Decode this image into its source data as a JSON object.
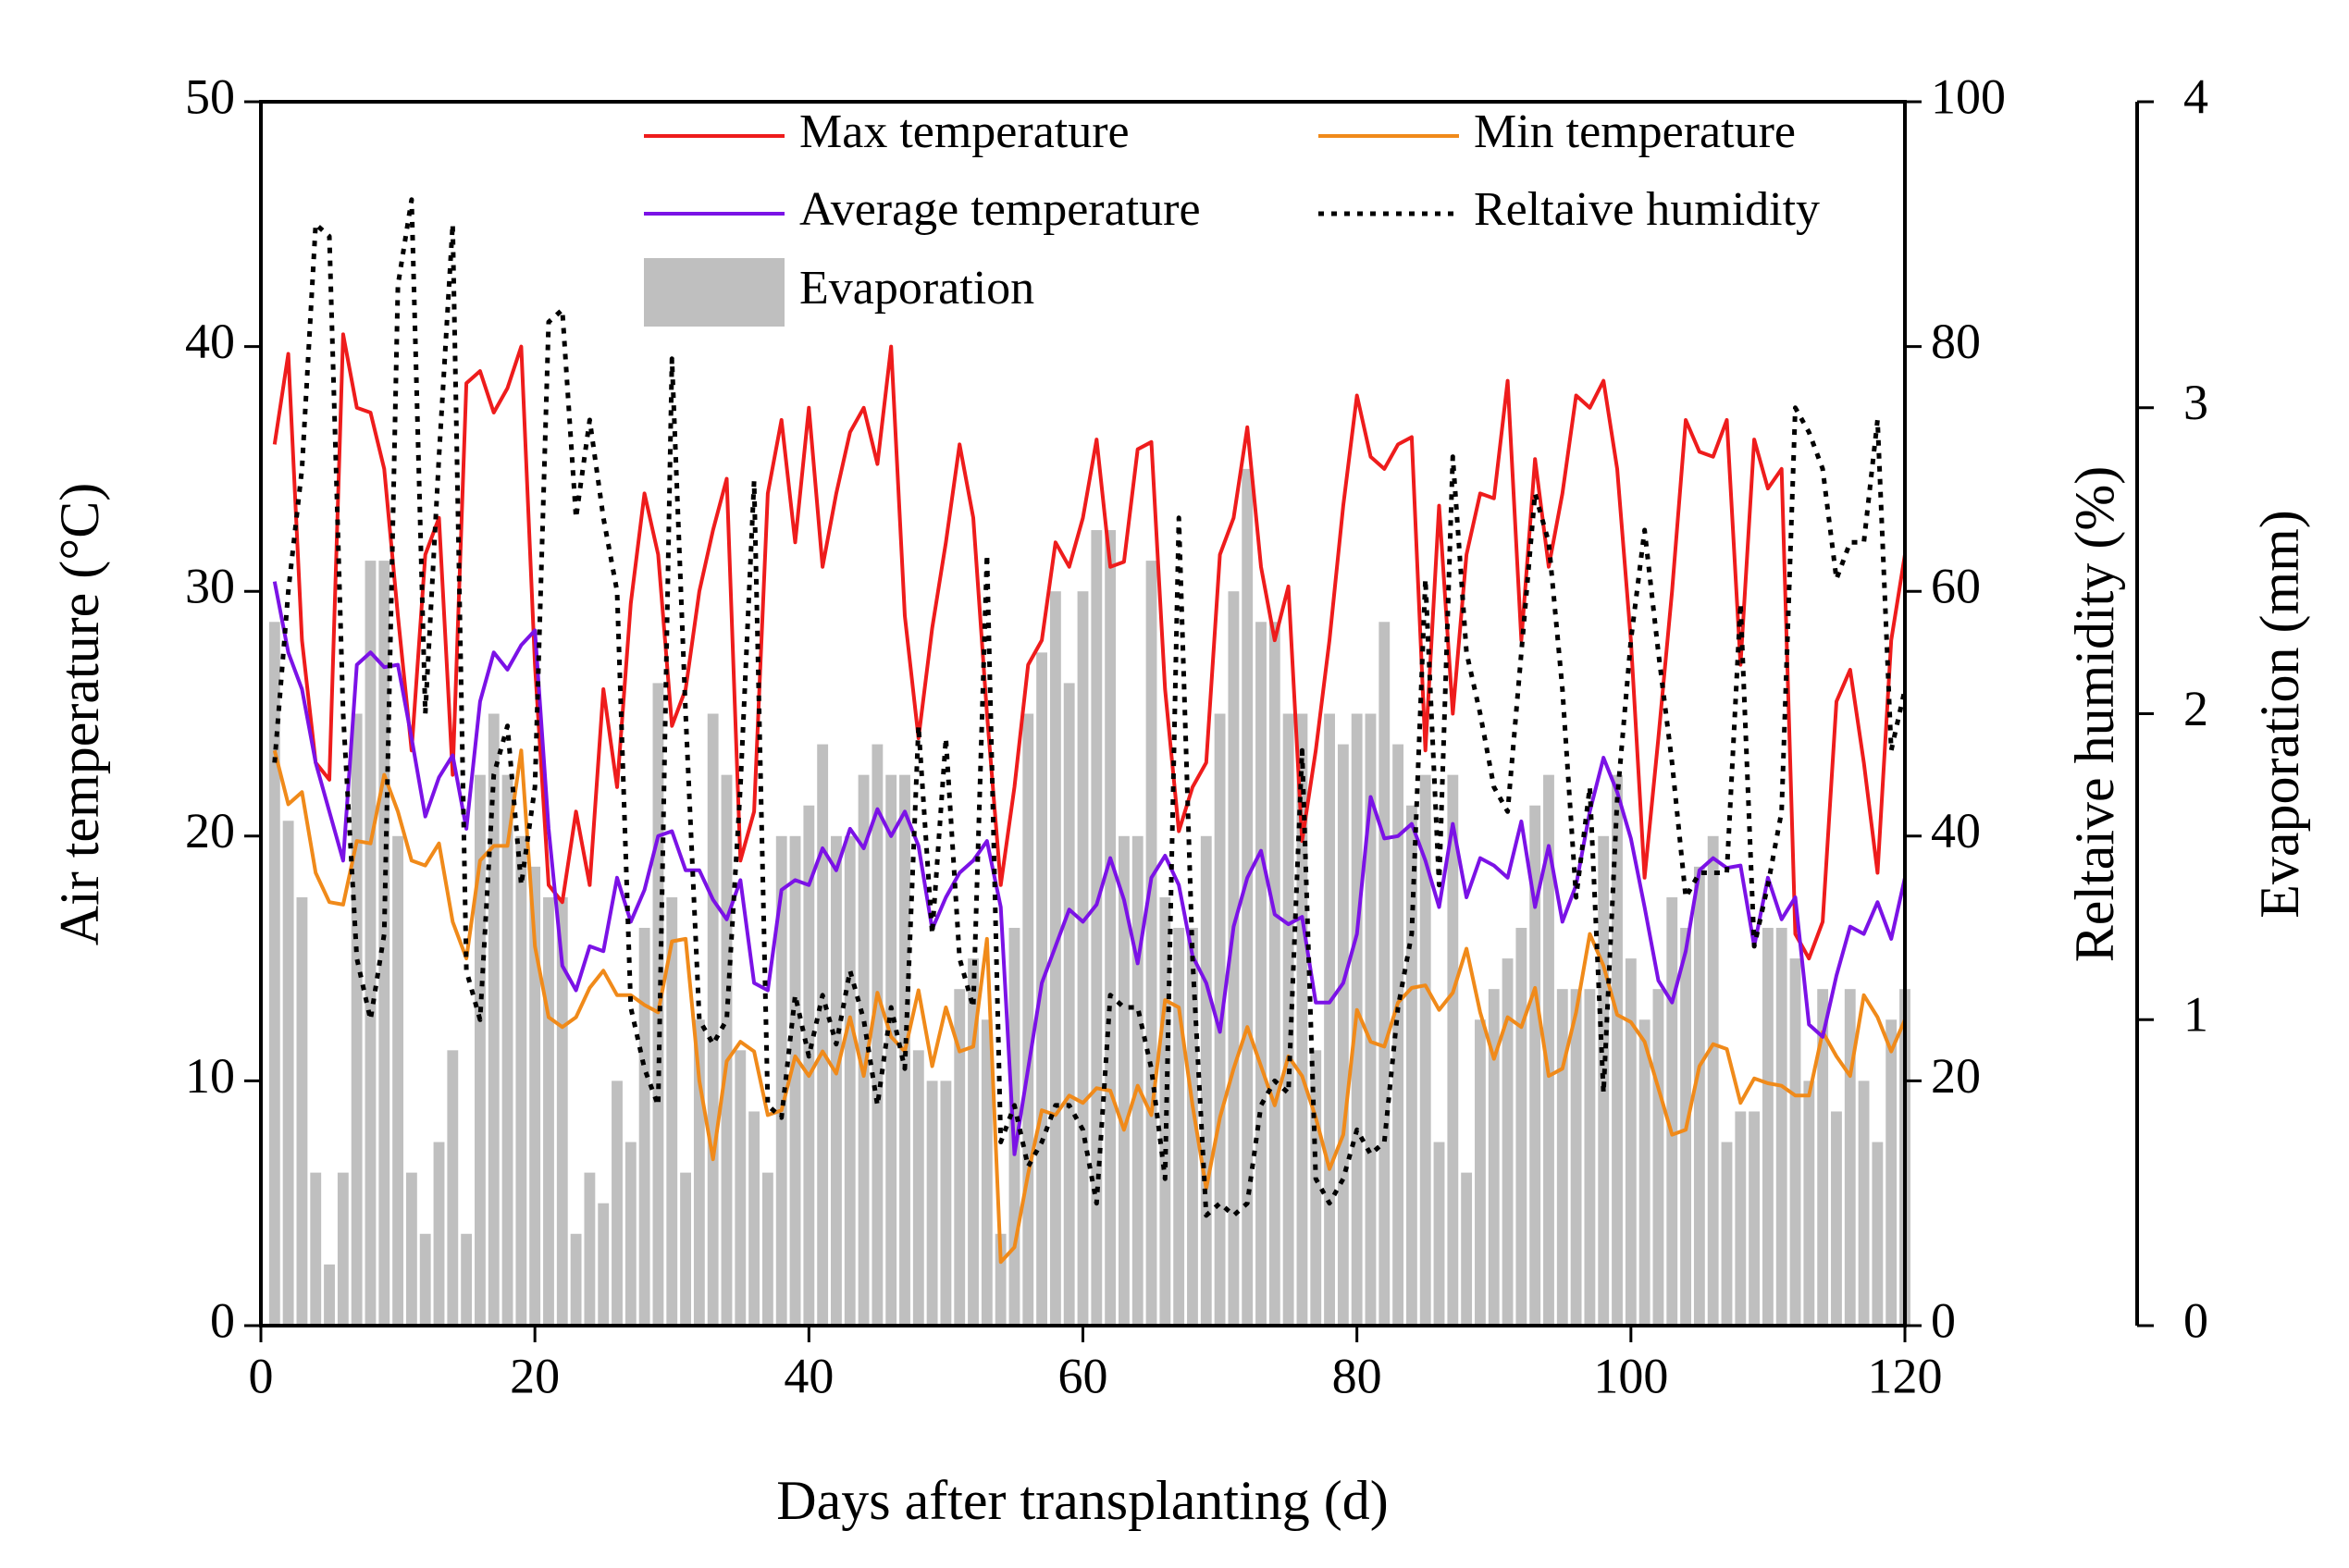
{
  "chart_data": {
    "type": "line",
    "xlabel": "Days after transplanting (d)",
    "ylabel": "Air temperature (°C)",
    "y2label": "Reltaive humidity (%)",
    "y3label": "Evaporation (mm)",
    "x": [
      1,
      2,
      3,
      4,
      5,
      6,
      7,
      8,
      9,
      10,
      11,
      12,
      13,
      14,
      15,
      16,
      17,
      18,
      19,
      20,
      21,
      22,
      23,
      24,
      25,
      26,
      27,
      28,
      29,
      30,
      31,
      32,
      33,
      34,
      35,
      36,
      37,
      38,
      39,
      40,
      41,
      42,
      43,
      44,
      45,
      46,
      47,
      48,
      49,
      50,
      51,
      52,
      53,
      54,
      55,
      56,
      57,
      58,
      59,
      60,
      61,
      62,
      63,
      64,
      65,
      66,
      67,
      68,
      69,
      70,
      71,
      72,
      73,
      74,
      75,
      76,
      77,
      78,
      79,
      80,
      81,
      82,
      83,
      84,
      85,
      86,
      87,
      88,
      89,
      90,
      91,
      92,
      93,
      94,
      95,
      96,
      97,
      98,
      99,
      100,
      101,
      102,
      103,
      104,
      105,
      106,
      107,
      108,
      109,
      110,
      111,
      112,
      113,
      114,
      115,
      116,
      117,
      118,
      119,
      120
    ],
    "xlim": [
      0,
      120
    ],
    "xticks": [
      0,
      20,
      40,
      60,
      80,
      100,
      120
    ],
    "ylim": [
      0,
      50
    ],
    "yticks": [
      0,
      10,
      20,
      30,
      40,
      50
    ],
    "y2lim": [
      0,
      100
    ],
    "y2ticks": [
      0,
      20,
      40,
      60,
      80,
      100
    ],
    "y3lim": [
      0,
      4
    ],
    "y3ticks": [
      0,
      1,
      2,
      3,
      4
    ],
    "series": [
      {
        "name": "Max temperature",
        "color": "#ee1c1c",
        "linestyle": "solid",
        "axis": "y",
        "values": [
          36,
          39.7,
          28,
          23,
          22.3,
          40.5,
          37.5,
          37.3,
          35,
          29,
          23.5,
          31.5,
          33,
          22.5,
          38.5,
          39,
          37.3,
          38.3,
          40,
          27,
          18,
          17.3,
          21,
          18,
          26,
          22,
          29.5,
          34,
          31.5,
          24.5,
          26,
          30,
          32.5,
          34.6,
          19,
          21,
          34,
          37,
          32,
          37.5,
          31,
          34,
          36.5,
          37.5,
          35.2,
          40,
          29,
          24,
          28.5,
          32,
          36,
          33,
          25,
          18,
          22,
          27,
          28,
          32,
          31,
          33,
          36.2,
          31,
          31.2,
          35.8,
          36.1,
          26,
          20.2,
          22,
          23,
          31.5,
          33,
          36.7,
          31,
          28,
          30.2,
          19.8,
          23.5,
          28,
          33.5,
          38,
          35.5,
          35,
          36,
          36.3,
          23.5,
          33.5,
          25,
          31.5,
          34,
          33.8,
          38.6,
          28,
          35.4,
          31,
          34,
          38,
          37.5,
          38.6,
          35,
          28,
          18.3,
          24,
          30,
          37,
          35.7,
          35.5,
          37,
          27,
          36.2,
          34.2,
          35,
          16,
          15,
          16.5,
          25.5,
          26.8,
          23,
          18.5,
          28,
          31.5
        ]
      },
      {
        "name": "Min temperature",
        "color": "#f08a1a",
        "linestyle": "solid",
        "axis": "y",
        "values": [
          23.5,
          21.3,
          21.8,
          18.5,
          17.3,
          17.2,
          19.8,
          19.7,
          22.5,
          21,
          19,
          18.8,
          19.7,
          16.5,
          15,
          19,
          19.6,
          19.6,
          23.5,
          15.5,
          12.6,
          12.2,
          12.6,
          13.8,
          14.5,
          13.5,
          13.5,
          13.1,
          12.8,
          15.7,
          15.8,
          10,
          6.8,
          10.8,
          11.6,
          11.2,
          8.6,
          8.8,
          11,
          10.2,
          11.2,
          10.3,
          12.6,
          10.2,
          13.6,
          11.8,
          11.2,
          13.7,
          10.6,
          13,
          11.2,
          11.4,
          15.8,
          2.6,
          3.2,
          6.2,
          8.8,
          8.6,
          9.4,
          9.1,
          9.7,
          9.6,
          8,
          9.8,
          8.6,
          13.3,
          13,
          9,
          5.6,
          8.5,
          10.5,
          12.2,
          10.6,
          9,
          11,
          10.2,
          8.5,
          6.4,
          7.8,
          12.9,
          11.6,
          11.4,
          13.2,
          13.8,
          13.9,
          12.9,
          13.6,
          15.4,
          12.8,
          10.9,
          12.6,
          12.2,
          13.8,
          10.2,
          10.5,
          12.8,
          16,
          14.7,
          12.7,
          12.4,
          11.6,
          9.7,
          7.8,
          8,
          10.6,
          11.5,
          11.3,
          9.1,
          10.1,
          9.9,
          9.8,
          9.4,
          9.4,
          12,
          11,
          10.2,
          13.5,
          12.6,
          11.2,
          12.5
        ]
      },
      {
        "name": "Average temperature",
        "color": "#7b12e6",
        "linestyle": "solid",
        "axis": "y",
        "values": [
          30.4,
          27.5,
          26,
          23,
          21,
          19,
          27,
          27.5,
          26.9,
          27,
          24,
          20.8,
          22.4,
          23.3,
          20.3,
          25.5,
          27.5,
          26.8,
          27.8,
          28.4,
          20.3,
          14.7,
          13.7,
          15.5,
          15.3,
          18.3,
          16.5,
          17.8,
          20,
          20.2,
          18.6,
          18.6,
          17.4,
          16.6,
          18.2,
          14,
          13.7,
          17.8,
          18.2,
          18,
          19.5,
          18.6,
          20.3,
          19.5,
          21.1,
          20,
          21,
          19.6,
          16.2,
          17.5,
          18.5,
          19,
          19.8,
          17.1,
          7,
          10.5,
          14,
          15.5,
          17,
          16.5,
          17.2,
          19.1,
          17.4,
          14.8,
          18.3,
          19.2,
          18,
          15.1,
          14,
          12,
          16.3,
          18.3,
          19.4,
          16.8,
          16.4,
          16.7,
          13.2,
          13.2,
          14,
          16,
          21.6,
          19.9,
          20,
          20.5,
          19,
          17.1,
          20.5,
          17.5,
          19.1,
          18.8,
          18.3,
          20.6,
          17.1,
          19.6,
          16.5,
          18,
          21,
          23.2,
          21.8,
          19.9,
          17.1,
          14.1,
          13.2,
          15.3,
          18.6,
          19.1,
          18.7,
          18.8,
          15.5,
          18.3,
          16.6,
          17.5,
          12.3,
          11.8,
          14.3,
          16.3,
          16,
          17.3,
          15.8,
          18.3
        ]
      },
      {
        "name": "Reltaive humidity",
        "color": "#000000",
        "linestyle": "dotted",
        "axis": "y2",
        "values": [
          46,
          60,
          70,
          90,
          89,
          50,
          30,
          25,
          32,
          85,
          92,
          50,
          71,
          90,
          29,
          25,
          45,
          49,
          36,
          44,
          82,
          83,
          66,
          74,
          66,
          60,
          26,
          21,
          18,
          79,
          50,
          25,
          23,
          25,
          44,
          69,
          18,
          17,
          27,
          22,
          27,
          23,
          29,
          25,
          18,
          26,
          21,
          49,
          32,
          48,
          30,
          26,
          63,
          15,
          18,
          13,
          15,
          18,
          18,
          16,
          10,
          27,
          26,
          26,
          21,
          12,
          66,
          30,
          9,
          10,
          9,
          10,
          18,
          20,
          19,
          47,
          12,
          10,
          12,
          16,
          14,
          15,
          26,
          32,
          61,
          36,
          71,
          55,
          50,
          44,
          42,
          55,
          68,
          64,
          52,
          35,
          44,
          19,
          43,
          56,
          65,
          55,
          46,
          35,
          37,
          37,
          37,
          59,
          31,
          36,
          42,
          75,
          73,
          70,
          61,
          64,
          64,
          74,
          47,
          52
        ]
      },
      {
        "name": "Evaporation",
        "color": "#bfbfbf",
        "linestyle": "bar",
        "axis": "y3",
        "values": [
          2.3,
          1.65,
          1.4,
          0.5,
          0.2,
          0.5,
          2.0,
          2.5,
          2.5,
          1.6,
          0.5,
          0.3,
          0.6,
          0.9,
          0.3,
          1.8,
          2.0,
          1.8,
          1.6,
          1.5,
          1.4,
          1.4,
          0.3,
          0.5,
          0.4,
          0.8,
          0.6,
          1.3,
          2.1,
          1.4,
          0.5,
          1.0,
          2.0,
          1.8,
          0.9,
          0.7,
          0.5,
          1.6,
          1.6,
          1.7,
          1.9,
          1.6,
          1.6,
          1.8,
          1.9,
          1.8,
          1.8,
          0.9,
          0.8,
          0.8,
          1.1,
          1.2,
          1.0,
          0.3,
          1.3,
          2.0,
          2.2,
          2.4,
          2.1,
          2.4,
          2.6,
          2.6,
          1.6,
          1.6,
          2.5,
          1.4,
          1.3,
          1.3,
          1.6,
          2.0,
          2.4,
          2.8,
          2.3,
          2.3,
          2.0,
          2.0,
          0.9,
          2.0,
          1.9,
          2.0,
          2.0,
          2.3,
          1.9,
          1.7,
          1.8,
          0.6,
          1.8,
          0.5,
          1.0,
          1.1,
          1.2,
          1.3,
          1.7,
          1.8,
          1.1,
          1.1,
          1.1,
          1.6,
          1.8,
          1.2,
          1.0,
          1.1,
          1.4,
          1.3,
          1.5,
          1.6,
          0.6,
          0.7,
          0.7,
          1.3,
          1.3,
          1.2,
          0.8,
          1.1,
          0.7,
          1.1,
          0.8,
          0.6,
          1.0,
          1.1
        ]
      }
    ]
  }
}
